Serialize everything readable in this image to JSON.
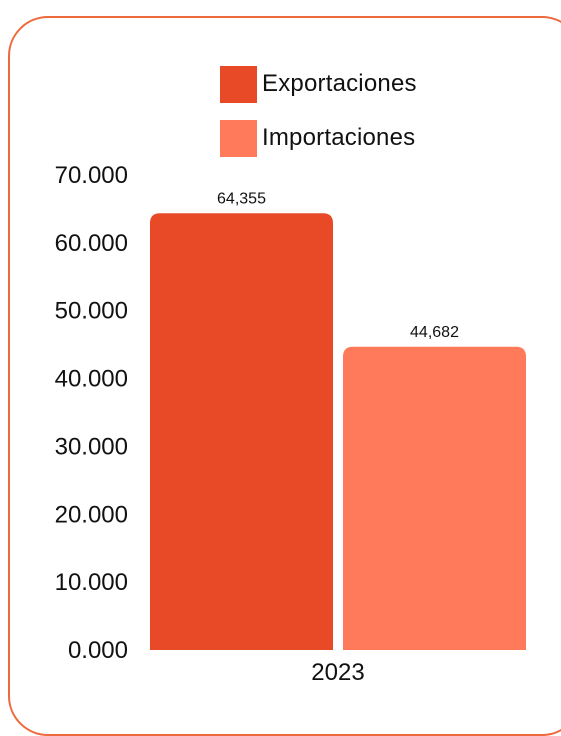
{
  "chart_data": {
    "type": "bar",
    "categories": [
      "2023"
    ],
    "series": [
      {
        "name": "Exportaciones",
        "values": [
          64355
        ],
        "color": "#e84a27",
        "label": "64,355"
      },
      {
        "name": "Importaciones",
        "values": [
          44682
        ],
        "color": "#ff7a5a",
        "label": "44,682"
      }
    ],
    "ylim": [
      0,
      70000
    ],
    "yticks": [
      0,
      10000,
      20000,
      30000,
      40000,
      50000,
      60000,
      70000
    ],
    "ytick_labels": [
      "0.000",
      "10.000",
      "20.000",
      "30.000",
      "40.000",
      "50.000",
      "60.000",
      "70.000"
    ],
    "legend_placement": "top",
    "grid": false,
    "frame_color": "#ee6a3c"
  },
  "legend": {
    "exportaciones": "Exportaciones",
    "importaciones": "Importaciones"
  }
}
